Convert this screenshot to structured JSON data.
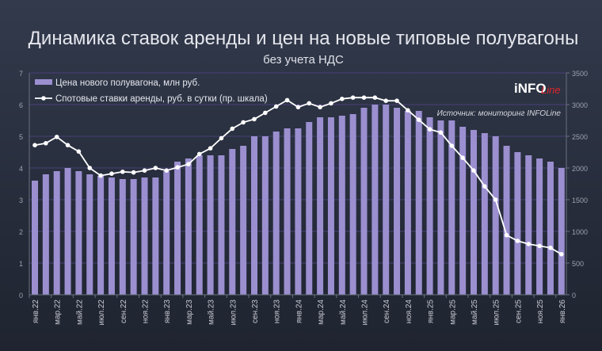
{
  "chart_data": {
    "type": "bar+line",
    "title": "Динамика ставок аренды и цен на новые типовые полувагоны",
    "subtitle": "без учета НДС",
    "source": "Источник: мониторинг INFOLine",
    "logo": "INFOLine",
    "legend_position": "top-left",
    "grid": true,
    "categories": [
      "янв.22",
      "фев.22",
      "мар.22",
      "апр.22",
      "май.22",
      "июн.22",
      "июл.22",
      "авг.22",
      "сен.22",
      "окт.22",
      "ноя.22",
      "дек.22",
      "янв.23",
      "фев.23",
      "мар.23",
      "апр.23",
      "май.23",
      "июн.23",
      "июл.23",
      "авг.23",
      "сен.23",
      "окт.23",
      "ноя.23",
      "дек.23",
      "янв.24",
      "фев.24",
      "мар.24",
      "апр.24",
      "май.24",
      "июн.24",
      "июл.24",
      "авг.24",
      "сен.24",
      "окт.24",
      "ноя.24",
      "дек.24",
      "янв.25",
      "фев.25",
      "мар.25",
      "апр.25",
      "май.25",
      "июн.25",
      "июл.25",
      "авг.25",
      "сен.25",
      "окт.25",
      "ноя.25",
      "дек.25",
      "янв.26"
    ],
    "x_tick_labels": [
      "янв.22",
      "мар.22",
      "май.22",
      "июл.22",
      "сен.22",
      "ноя.22",
      "янв.23",
      "мар.23",
      "май.23",
      "июл.23",
      "сен.23",
      "ноя.23",
      "янв.24",
      "мар.24",
      "май.24",
      "июл.24",
      "сен.24",
      "ноя.24",
      "янв.25",
      "мар.25",
      "май.25",
      "июл.25",
      "сен.25",
      "ноя.25",
      "янв.26"
    ],
    "y_left": {
      "ylim": [
        0,
        7
      ],
      "ticks": [
        "0",
        "1",
        "2",
        "3",
        "4",
        "5",
        "6",
        "7"
      ]
    },
    "y_right": {
      "ylim": [
        0,
        3500
      ],
      "ticks": [
        "0",
        "500",
        "1000",
        "1500",
        "2000",
        "2500",
        "3000",
        "3500"
      ]
    },
    "series": [
      {
        "name": "Цена нового полувагона, млн руб.",
        "type": "bar",
        "axis": "left",
        "color": "#9b8fd0",
        "values": [
          3.6,
          3.8,
          3.9,
          4.0,
          3.9,
          3.8,
          3.75,
          3.7,
          3.65,
          3.65,
          3.7,
          3.7,
          3.9,
          4.2,
          4.3,
          4.4,
          4.4,
          4.4,
          4.6,
          4.7,
          5.0,
          5.0,
          5.15,
          5.25,
          5.25,
          5.45,
          5.6,
          5.6,
          5.65,
          5.7,
          5.9,
          6.0,
          6.0,
          5.9,
          5.8,
          5.8,
          5.6,
          5.5,
          5.5,
          5.3,
          5.2,
          5.1,
          5.0,
          4.7,
          4.5,
          4.4,
          4.3,
          4.2,
          4.0
        ]
      },
      {
        "name": "Спотовые ставки аренды, руб. в сутки (пр. шкала)",
        "type": "line",
        "axis": "right",
        "color": "#ffffff",
        "values": [
          2360,
          2390,
          2490,
          2360,
          2260,
          2000,
          1880,
          1910,
          1940,
          1930,
          1960,
          2000,
          1960,
          2010,
          2060,
          2220,
          2310,
          2470,
          2620,
          2720,
          2770,
          2870,
          2970,
          3070,
          2960,
          3020,
          2960,
          3020,
          3090,
          3110,
          3110,
          3110,
          3060,
          3060,
          2910,
          2760,
          2610,
          2560,
          2350,
          2160,
          1960,
          1710,
          1500,
          940,
          850,
          800,
          770,
          740,
          640
        ]
      }
    ]
  }
}
